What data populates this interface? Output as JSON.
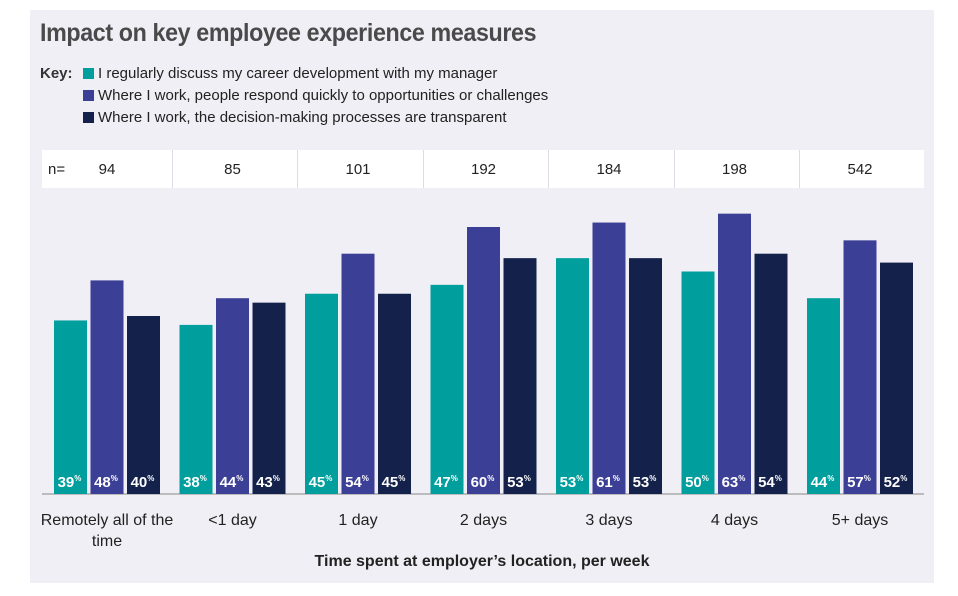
{
  "chart_data": {
    "type": "bar",
    "title": "Impact on key employee experience measures",
    "legend_key_label": "Key:",
    "n_label": "n=",
    "n_values": [
      "94",
      "85",
      "101",
      "192",
      "184",
      "198",
      "542"
    ],
    "categories": [
      "Remotely all of the time",
      "<1 day",
      "1 day",
      "2 days",
      "3 days",
      "4 days",
      "5+ days"
    ],
    "xlabel": "Time spent at employer’s location, per week",
    "ylabel": "",
    "ylim": [
      0,
      75
    ],
    "value_suffix": "%",
    "series": [
      {
        "name": "I regularly discuss my career development with my manager",
        "color": "#009e9c",
        "values": [
          39,
          38,
          45,
          47,
          53,
          50,
          44
        ]
      },
      {
        "name": "Where I work, people respond quickly to opportunities or challenges",
        "color": "#3c3f96",
        "values": [
          48,
          44,
          54,
          60,
          61,
          63,
          57
        ]
      },
      {
        "name": "Where I work, the decision-making processes are transparent",
        "color": "#14214b",
        "values": [
          40,
          43,
          45,
          53,
          53,
          54,
          52
        ]
      }
    ]
  }
}
